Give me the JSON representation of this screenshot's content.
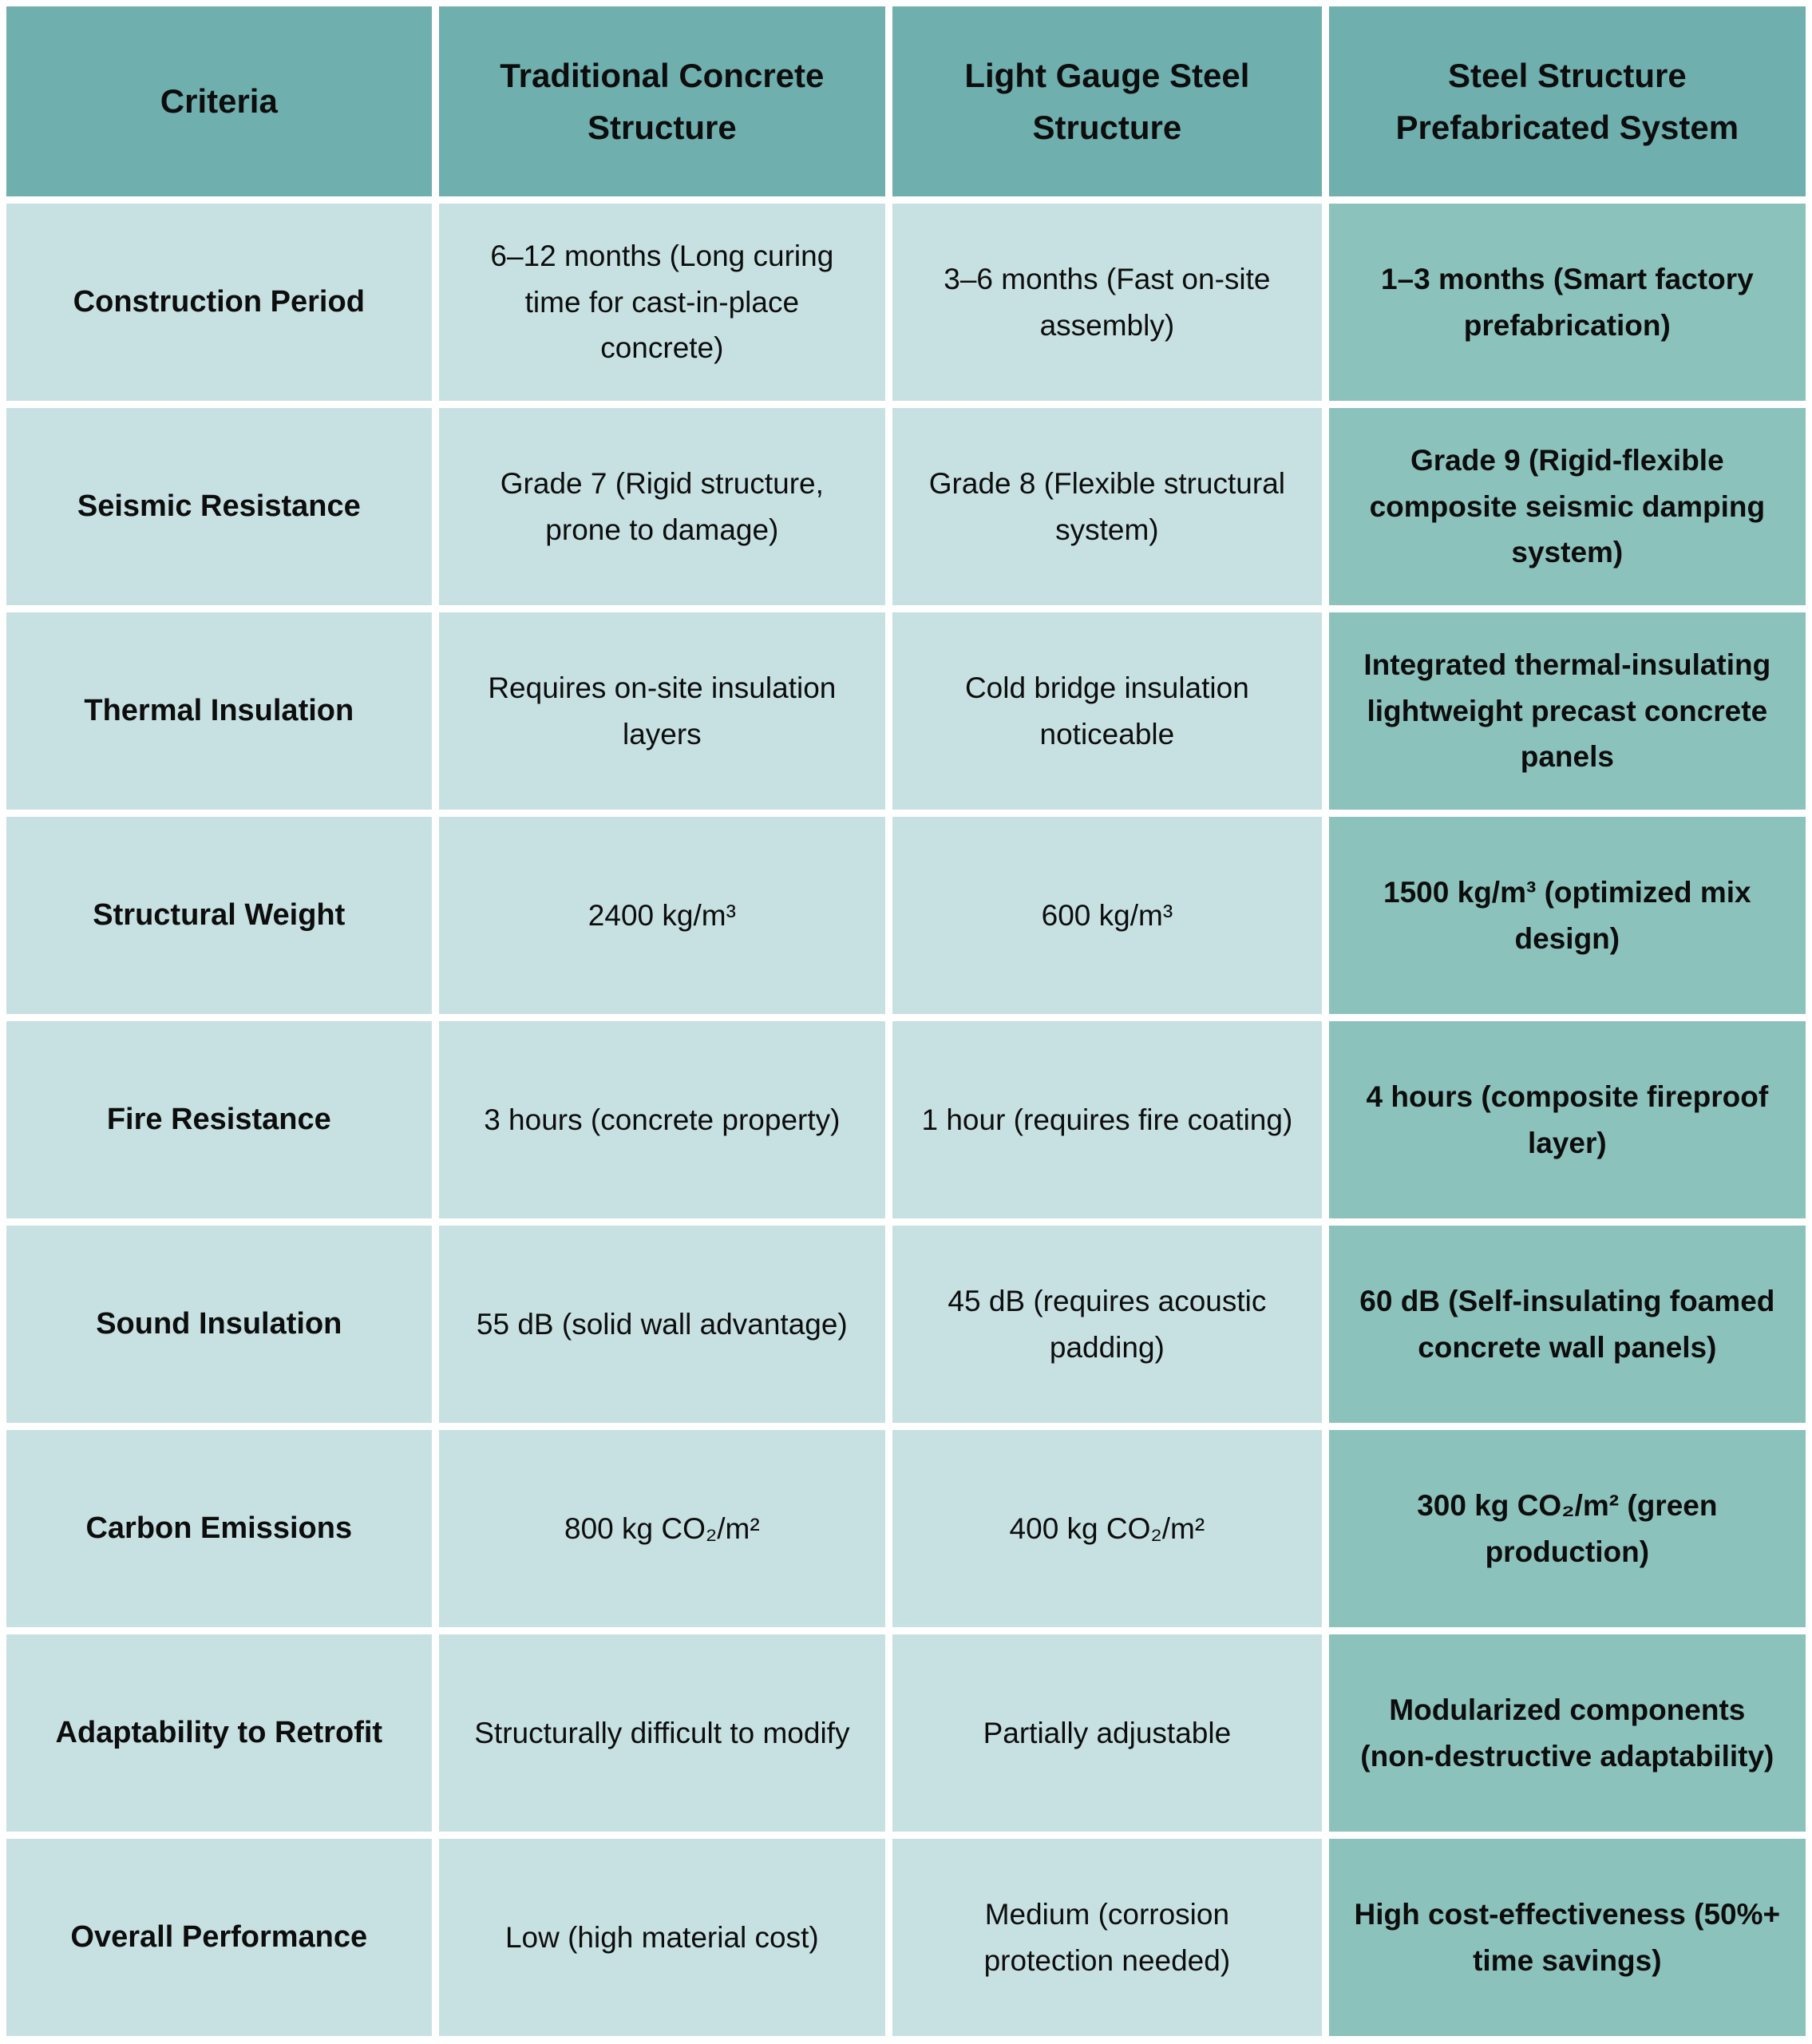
{
  "chart_data": {
    "type": "table",
    "columns": [
      "Criteria",
      "Traditional Concrete Structure",
      "Light Gauge Steel Structure",
      "Steel Structure Prefabricated System"
    ],
    "rows": [
      [
        "Construction Period",
        "6–12 months (Long curing time for cast-in-place concrete)",
        "3–6 months (Fast on-site assembly)",
        "1–3 months (Smart factory prefabrication)"
      ],
      [
        "Seismic Resistance",
        "Grade 7 (Rigid structure, prone to damage)",
        "Grade 8 (Flexible structural system)",
        "Grade 9 (Rigid-flexible composite seismic damping system)"
      ],
      [
        "Thermal Insulation",
        "Requires on-site insulation layers",
        "Cold bridge insulation noticeable",
        "Integrated thermal-insulating lightweight precast concrete panels"
      ],
      [
        "Structural Weight",
        "2400 kg/m³",
        "600 kg/m³",
        "1500 kg/m³ (optimized mix design)"
      ],
      [
        "Fire Resistance",
        "3 hours (concrete property)",
        "1 hour (requires fire coating)",
        "4 hours (composite fireproof layer)"
      ],
      [
        "Sound Insulation",
        "55 dB (solid wall advantage)",
        "45 dB (requires acoustic padding)",
        "60 dB (Self-insulating foamed concrete wall panels)"
      ],
      [
        "Carbon Emissions",
        "800 kg CO₂/m²",
        "400 kg CO₂/m²",
        "300 kg CO₂/m² (green production)"
      ],
      [
        "Adaptability to Retrofit",
        "Structurally difficult to modify",
        "Partially adjustable",
        "Modularized components (non-destructive adaptability)"
      ],
      [
        "Overall Performance",
        "Low (high material cost)",
        "Medium (corrosion protection needed)",
        "High cost-effectiveness (50%+ time savings)"
      ]
    ],
    "layout_hints": {
      "highlighted_column": "Steel Structure Prefabricated System",
      "header_bg": "#6FAFAE",
      "body_bg": "#C7E1E2",
      "highlight_bg": "#8CC2BC",
      "grid_gap_color": "#FFFFFF",
      "text_color": "#0D0D0D"
    }
  }
}
